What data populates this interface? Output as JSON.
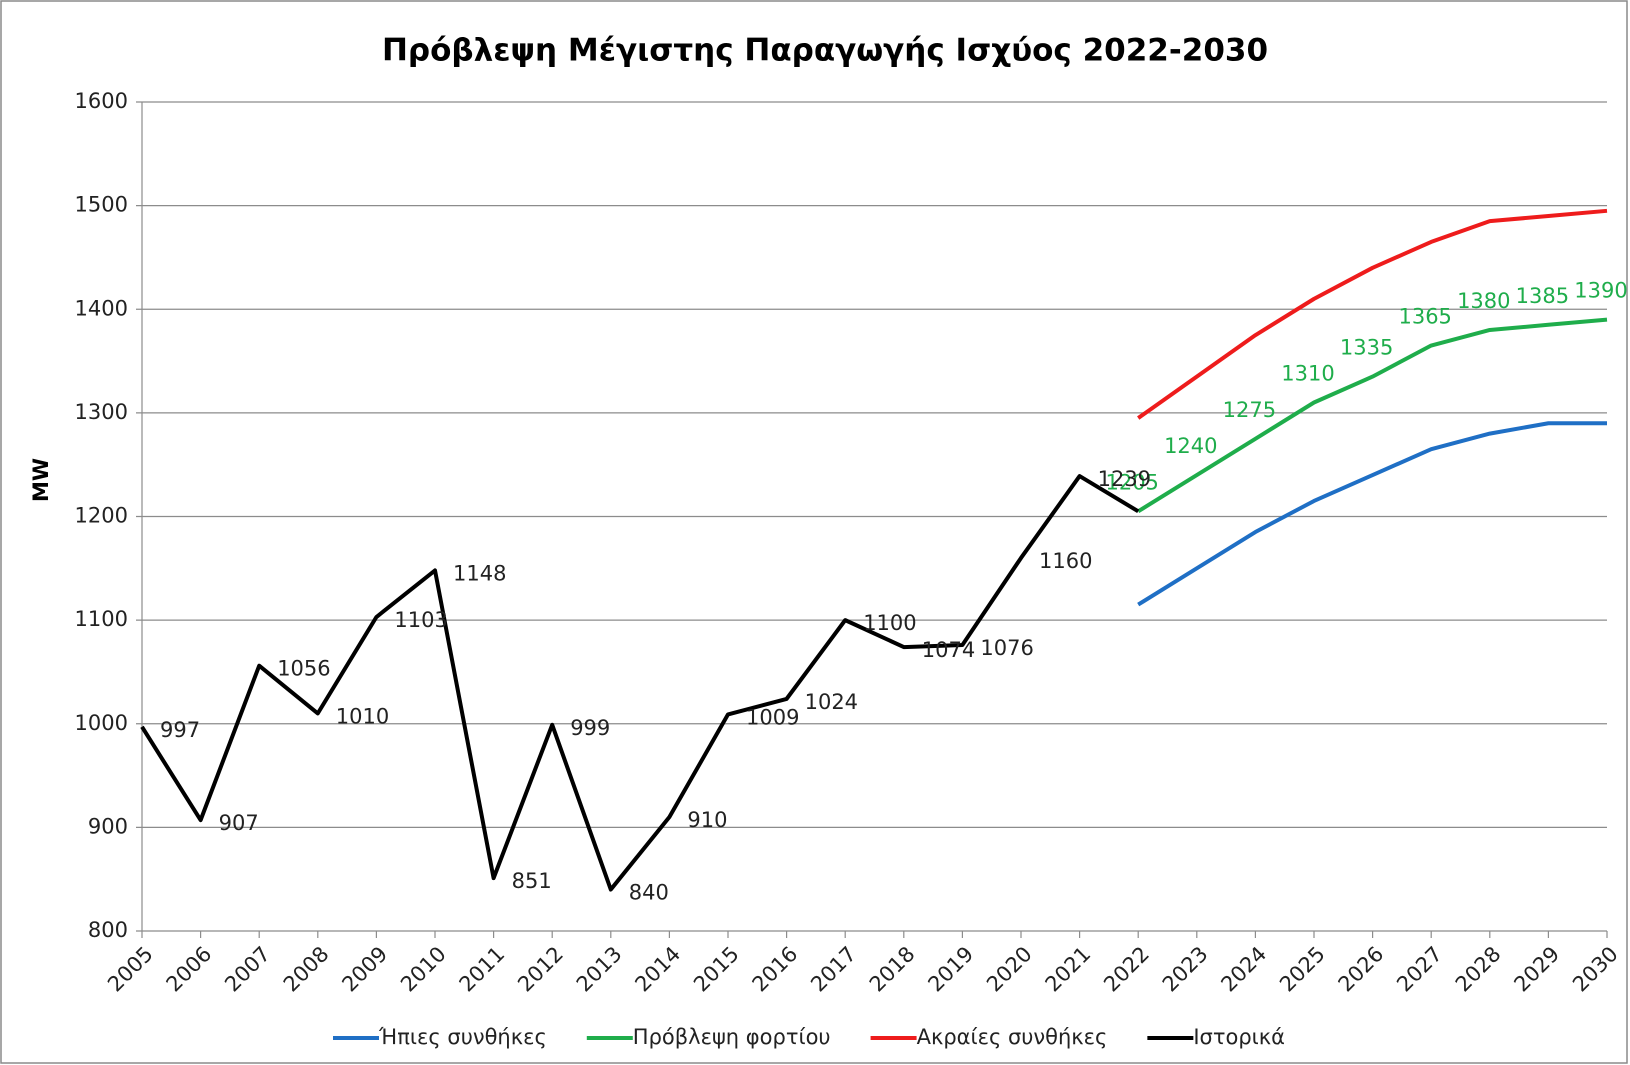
{
  "chart_data": {
    "type": "line",
    "title": "Πρόβλεψη Μέγιστης Παραγωγής Ισχύος 2022-2030",
    "ylabel": "MW",
    "categories": [
      "2005",
      "2006",
      "2007",
      "2008",
      "2009",
      "2010",
      "2011",
      "2012",
      "2013",
      "2014",
      "2015",
      "2016",
      "2017",
      "2018",
      "2019",
      "2020",
      "2021",
      "2022",
      "2023",
      "2024",
      "2025",
      "2026",
      "2027",
      "2028",
      "2029",
      "2030"
    ],
    "ylim": [
      800,
      1600
    ],
    "yticks": [
      800,
      900,
      1000,
      1100,
      1200,
      1300,
      1400,
      1500,
      1600
    ],
    "grid": true,
    "legend": "bottom",
    "series": [
      {
        "name": "Ήπιες συνθήκες",
        "color": "#1f6fc5",
        "values": [
          null,
          null,
          null,
          null,
          null,
          null,
          null,
          null,
          null,
          null,
          null,
          null,
          null,
          null,
          null,
          null,
          null,
          1115,
          1150,
          1185,
          1215,
          1240,
          1265,
          1280,
          1290,
          1290
        ]
      },
      {
        "name": "Πρόβλεψη φορτίου",
        "color": "#1fad4b",
        "values": [
          null,
          null,
          null,
          null,
          null,
          null,
          null,
          null,
          null,
          null,
          null,
          null,
          null,
          null,
          null,
          null,
          null,
          1205,
          1240,
          1275,
          1310,
          1335,
          1365,
          1380,
          1385,
          1390
        ],
        "value_labels": [
          null,
          null,
          null,
          null,
          null,
          null,
          null,
          null,
          null,
          null,
          null,
          null,
          null,
          null,
          null,
          null,
          null,
          "1205",
          "1240",
          "1275",
          "1310",
          "1335",
          "1365",
          "1380",
          "1385",
          "1390"
        ]
      },
      {
        "name": "Ακραίες συνθήκες",
        "color": "#ee1c1c",
        "values": [
          null,
          null,
          null,
          null,
          null,
          null,
          null,
          null,
          null,
          null,
          null,
          null,
          null,
          null,
          null,
          null,
          null,
          1295,
          1335,
          1375,
          1410,
          1440,
          1465,
          1485,
          1490,
          1495
        ]
      },
      {
        "name": "Ιστορικά",
        "color": "#000000",
        "values": [
          997,
          907,
          1056,
          1010,
          1103,
          1148,
          851,
          999,
          840,
          910,
          1009,
          1024,
          1100,
          1074,
          1076,
          1160,
          1239,
          1205,
          null,
          null,
          null,
          null,
          null,
          null,
          null,
          null
        ],
        "value_labels": [
          "997",
          "907",
          "1056",
          "1010",
          "1103",
          "1148",
          "851",
          "999",
          "840",
          "910",
          "1009",
          "1024",
          "1100",
          "1074",
          "1076",
          "1160",
          "1239",
          null,
          null,
          null,
          null,
          null,
          null,
          null,
          null,
          null
        ]
      }
    ]
  }
}
